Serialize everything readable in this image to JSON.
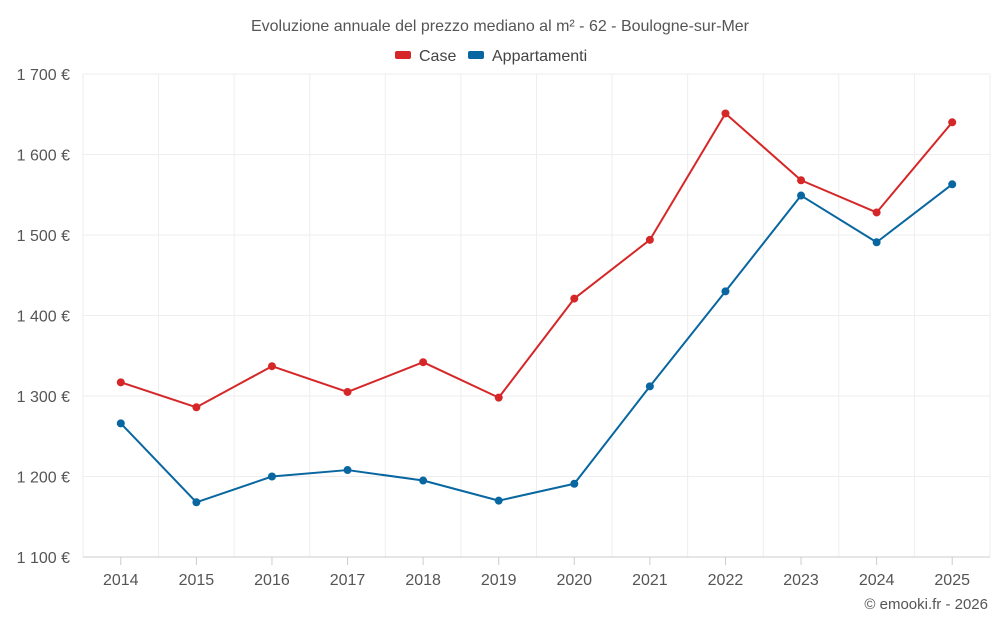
{
  "chart_data": {
    "type": "line",
    "title": "Evoluzione annuale del prezzo mediano al m² - 62 - Boulogne-sur-Mer",
    "categories": [
      "2014",
      "2015",
      "2016",
      "2017",
      "2018",
      "2019",
      "2020",
      "2021",
      "2022",
      "2023",
      "2024",
      "2025"
    ],
    "series": [
      {
        "name": "Case",
        "color": "#d62728",
        "values": [
          1317,
          1286,
          1337,
          1305,
          1342,
          1298,
          1421,
          1494,
          1651,
          1568,
          1528,
          1640
        ]
      },
      {
        "name": "Appartamenti",
        "color": "#0866a0",
        "values": [
          1266,
          1168,
          1200,
          1208,
          1195,
          1170,
          1191,
          1312,
          1430,
          1549,
          1491,
          1563
        ]
      }
    ],
    "ylim": [
      1100,
      1700
    ],
    "yticks": [
      1100,
      1200,
      1300,
      1400,
      1500,
      1600,
      1700
    ],
    "ytick_labels": [
      "1 100 €",
      "1 200 €",
      "1 300 €",
      "1 400 €",
      "1 500 €",
      "1 600 €",
      "1 700 €"
    ],
    "legend_position": "top-center",
    "grid": true,
    "credit": "© emooki.fr - 2026"
  }
}
